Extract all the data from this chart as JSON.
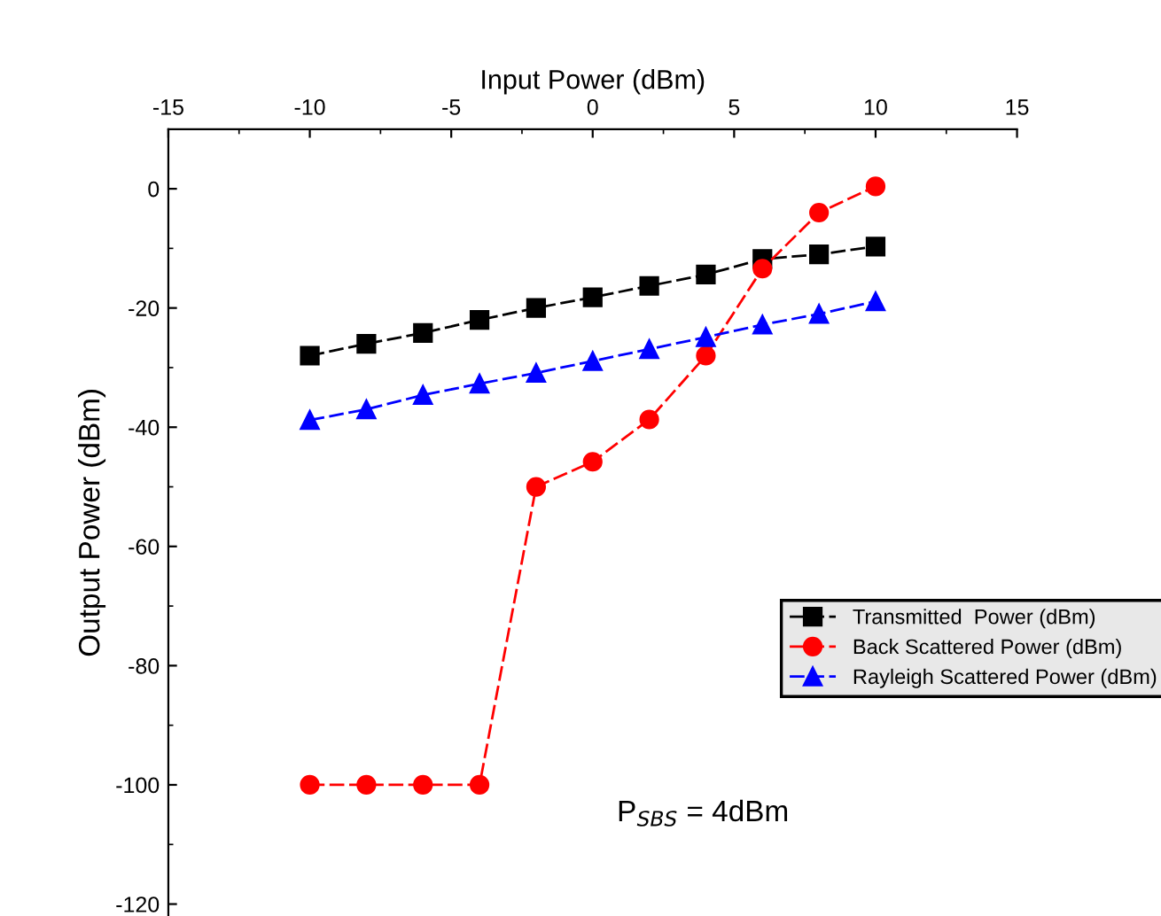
{
  "chart_data": {
    "type": "line",
    "xlabel": "Input Power (dBm)",
    "ylabel": "Output Power (dBm)",
    "x": [
      -10,
      -8,
      -6,
      -4,
      -2,
      0,
      2,
      4,
      6,
      8,
      10
    ],
    "series": [
      {
        "name": "Transmitted  Power (dBm)",
        "color": "#000000",
        "marker": "square",
        "line_style": "dashed",
        "values": [
          -28,
          -26,
          -24.2,
          -22,
          -20,
          -18.2,
          -16.3,
          -14.4,
          -11.8,
          -11,
          -9.7
        ]
      },
      {
        "name": "Back Scattered Power (dBm)",
        "color": "#ff0000",
        "marker": "circle",
        "line_style": "dashed",
        "values": [
          -100,
          -100,
          -100,
          -100,
          -50,
          -45.8,
          -38.7,
          -28,
          -13.4,
          -4,
          0.4
        ]
      },
      {
        "name": "Rayleigh Scattered Power (dBm)",
        "color": "#0000ff",
        "marker": "triangle",
        "line_style": "dashed",
        "values": [
          -38.8,
          -37,
          -34.6,
          -32.7,
          -30.9,
          -28.9,
          -26.9,
          -24.9,
          -22.8,
          -21,
          -18.9
        ]
      }
    ],
    "xlim": [
      -15,
      15
    ],
    "xticks": [
      -15,
      -10,
      -5,
      0,
      5,
      10,
      15
    ],
    "ylim": [
      -122,
      10
    ],
    "yticks": [
      -120,
      -100,
      -80,
      -60,
      -40,
      -20,
      0
    ],
    "legend": "right",
    "grid": false,
    "annotations": [
      "P$_{SBS}$ = 4dBm"
    ]
  }
}
